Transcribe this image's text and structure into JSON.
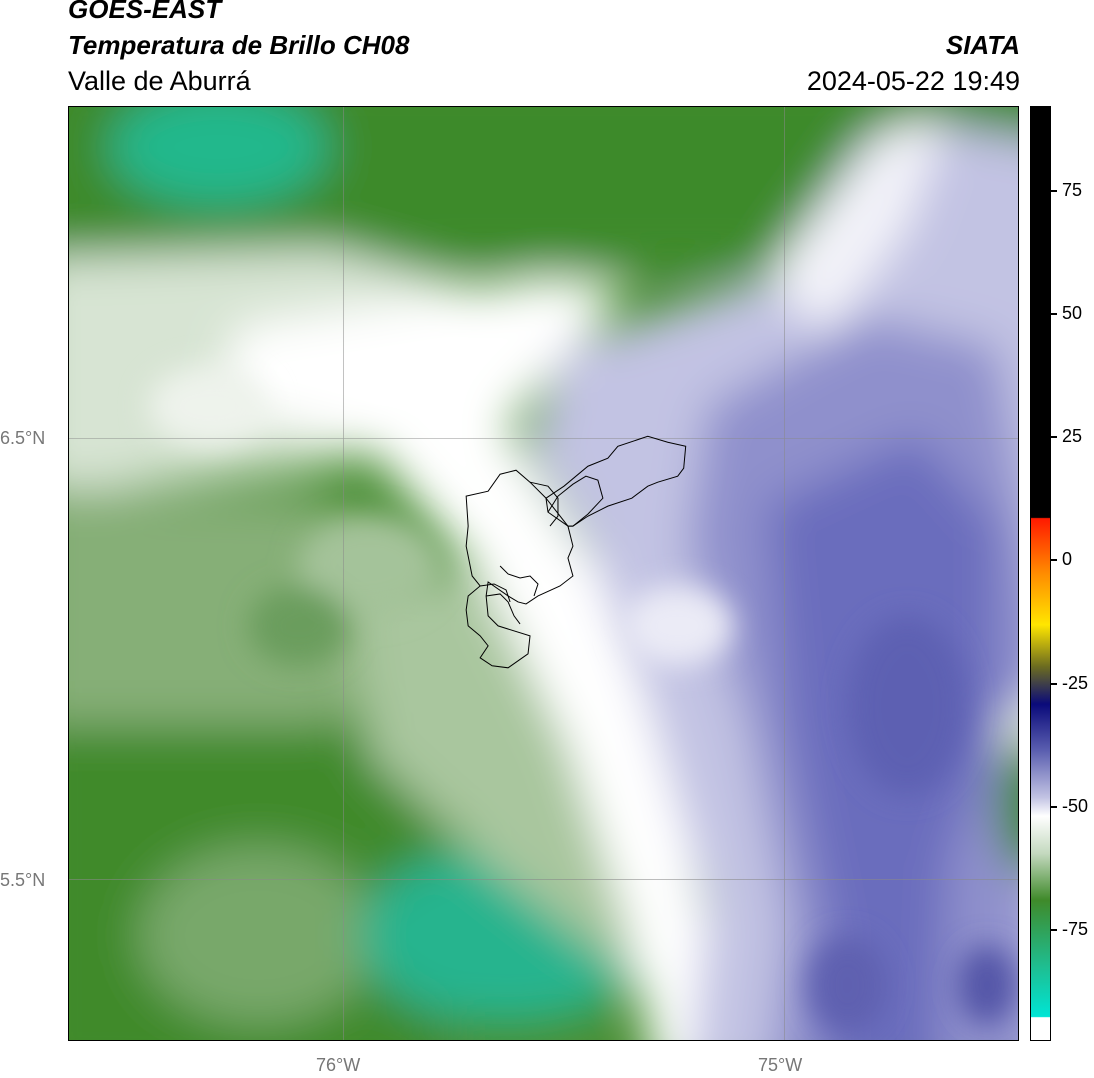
{
  "header": {
    "agency": "GOES-EAST",
    "product": "Temperatura de Brillo CH08",
    "region": "Valle de Aburrá",
    "organization": "SIATA",
    "timestamp": "2024-05-22 19:49"
  },
  "axes": {
    "lat_labels": [
      "6.5°N",
      "5.5°N"
    ],
    "lon_labels": [
      "76°W",
      "75°W"
    ]
  },
  "colorbar": {
    "ticks": [
      "75",
      "50",
      "25",
      "0",
      "-25",
      "-50",
      "-75"
    ],
    "colors": {
      "cyan": "#00e5d5",
      "teal": "#1fbd8f",
      "green": "#3f8a2a",
      "light_green": "#c4d9bf",
      "white": "#ffffff",
      "lavender": "#c2c3e3",
      "blue_purple": "#5b5fb0",
      "navy": "#0a0a7a",
      "yellow": "#ffe600",
      "orange": "#ff8c00",
      "red": "#ff1a00",
      "black": "#000000"
    }
  },
  "colors": {
    "map_green": "#3c8a28",
    "map_teal": "#22b88c",
    "map_white": "#ffffff",
    "map_lavender": "#b9badf",
    "map_purple": "#6466b4",
    "grid": "#888888"
  }
}
